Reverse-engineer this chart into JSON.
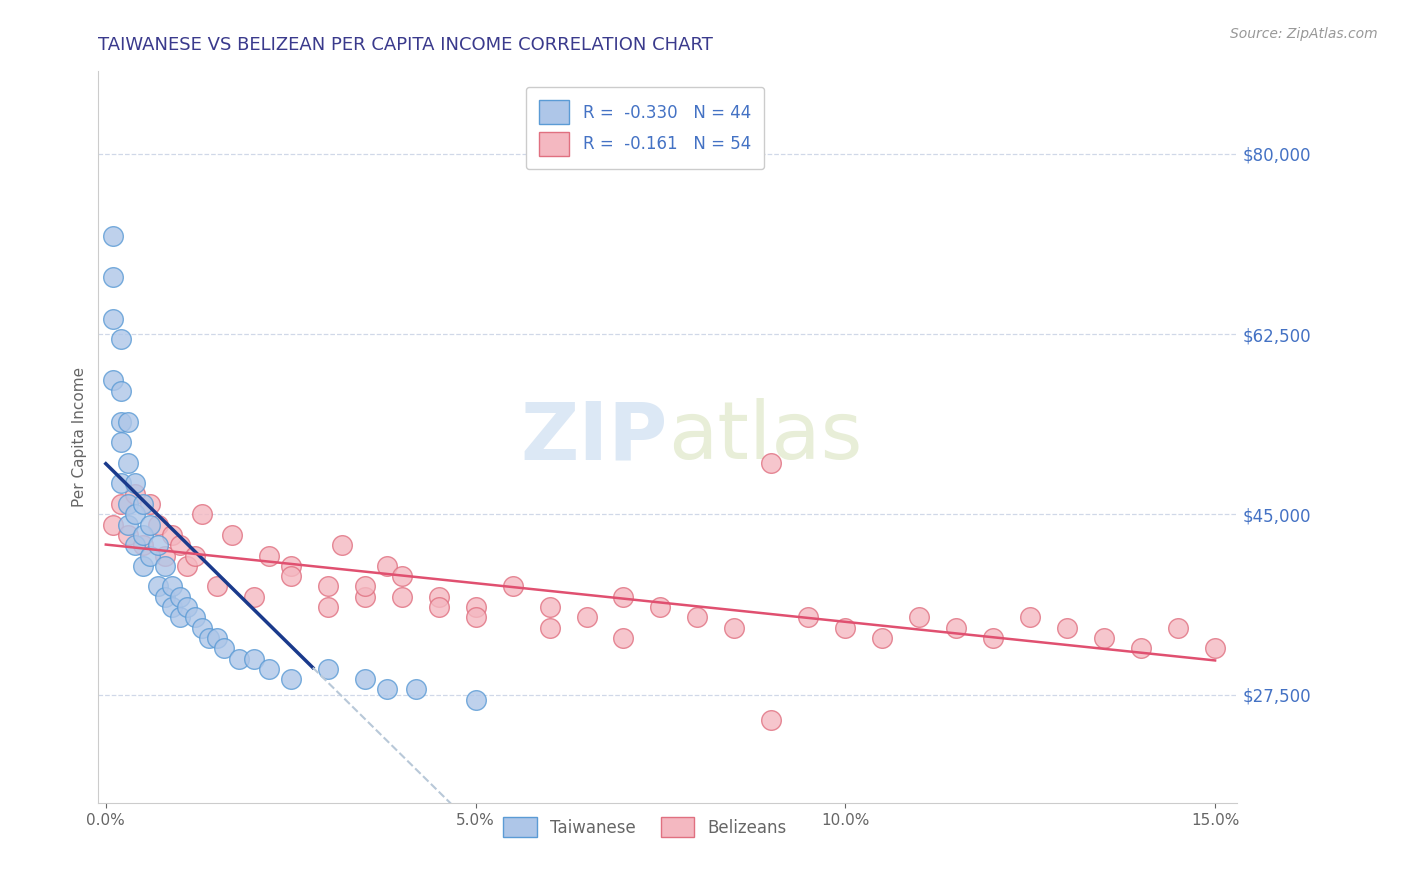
{
  "title": "TAIWANESE VS BELIZEAN PER CAPITA INCOME CORRELATION CHART",
  "source_text": "Source: ZipAtlas.com",
  "ylabel": "Per Capita Income",
  "xlim": [
    -0.001,
    0.153
  ],
  "ylim": [
    17000,
    88000
  ],
  "yticks": [
    27500,
    45000,
    62500,
    80000
  ],
  "ytick_labels": [
    "$27,500",
    "$45,000",
    "$62,500",
    "$80,000"
  ],
  "xticks": [
    0.0,
    0.05,
    0.1,
    0.15
  ],
  "xtick_labels": [
    "0.0%",
    "5.0%",
    "10.0%",
    "15.0%"
  ],
  "taiwanese_color": "#aec6e8",
  "taiwanese_edge": "#5b9bd5",
  "belizean_color": "#f4b8c1",
  "belizean_edge": "#e07080",
  "regression_taiwanese_color": "#1a3a8c",
  "regression_belizean_color": "#e05070",
  "regression_dashed_color": "#b8c8d8",
  "title_color": "#3a3a8c",
  "ytick_color": "#4472c4",
  "watermark_color": "#dce8f5",
  "grid_color": "#d0d8e8",
  "taiwanese_x": [
    0.001,
    0.001,
    0.001,
    0.001,
    0.002,
    0.002,
    0.002,
    0.002,
    0.002,
    0.003,
    0.003,
    0.003,
    0.003,
    0.004,
    0.004,
    0.004,
    0.005,
    0.005,
    0.005,
    0.006,
    0.006,
    0.007,
    0.007,
    0.008,
    0.008,
    0.009,
    0.009,
    0.01,
    0.01,
    0.011,
    0.012,
    0.013,
    0.014,
    0.015,
    0.016,
    0.018,
    0.02,
    0.022,
    0.025,
    0.03,
    0.035,
    0.038,
    0.042,
    0.05
  ],
  "taiwanese_y": [
    72000,
    68000,
    64000,
    58000,
    62000,
    57000,
    54000,
    52000,
    48000,
    54000,
    50000,
    46000,
    44000,
    48000,
    45000,
    42000,
    46000,
    43000,
    40000,
    44000,
    41000,
    42000,
    38000,
    40000,
    37000,
    38000,
    36000,
    37000,
    35000,
    36000,
    35000,
    34000,
    33000,
    33000,
    32000,
    31000,
    31000,
    30000,
    29000,
    30000,
    29000,
    28000,
    28000,
    27000
  ],
  "belizean_x": [
    0.001,
    0.002,
    0.003,
    0.004,
    0.005,
    0.006,
    0.007,
    0.008,
    0.009,
    0.01,
    0.011,
    0.012,
    0.013,
    0.015,
    0.017,
    0.02,
    0.022,
    0.025,
    0.03,
    0.032,
    0.035,
    0.038,
    0.04,
    0.045,
    0.05,
    0.055,
    0.06,
    0.065,
    0.07,
    0.075,
    0.08,
    0.085,
    0.09,
    0.095,
    0.1,
    0.105,
    0.11,
    0.115,
    0.12,
    0.125,
    0.13,
    0.135,
    0.14,
    0.145,
    0.15,
    0.025,
    0.03,
    0.035,
    0.04,
    0.045,
    0.05,
    0.06,
    0.07,
    0.09
  ],
  "belizean_y": [
    44000,
    46000,
    43000,
    47000,
    42000,
    46000,
    44000,
    41000,
    43000,
    42000,
    40000,
    41000,
    45000,
    38000,
    43000,
    37000,
    41000,
    40000,
    38000,
    42000,
    37000,
    40000,
    39000,
    37000,
    36000,
    38000,
    36000,
    35000,
    37000,
    36000,
    35000,
    34000,
    50000,
    35000,
    34000,
    33000,
    35000,
    34000,
    33000,
    35000,
    34000,
    33000,
    32000,
    34000,
    32000,
    39000,
    36000,
    38000,
    37000,
    36000,
    35000,
    34000,
    33000,
    25000
  ]
}
